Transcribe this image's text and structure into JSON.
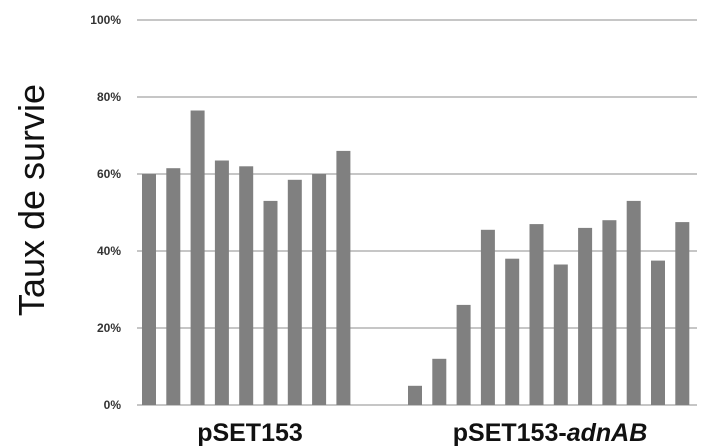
{
  "chart_data": {
    "type": "bar",
    "ylabel": "Taux de survie",
    "ylim": [
      0,
      100
    ],
    "y_ticks": [
      "0%",
      "20%",
      "40%",
      "60%",
      "80%",
      "100%"
    ],
    "y_tick_values": [
      0,
      20,
      40,
      60,
      80,
      100
    ],
    "grid": true,
    "color": "#808080",
    "groups": [
      {
        "label": "pSET153",
        "label_suffix": "",
        "values": [
          60,
          61.5,
          76.5,
          63.5,
          62,
          53,
          58.5,
          60,
          66
        ]
      },
      {
        "label": "pSET153-",
        "label_suffix": "adnAB",
        "values": [
          5,
          12,
          26,
          45.5,
          38,
          47,
          36.5,
          46,
          48,
          53,
          37.5,
          47.5
        ]
      }
    ]
  }
}
